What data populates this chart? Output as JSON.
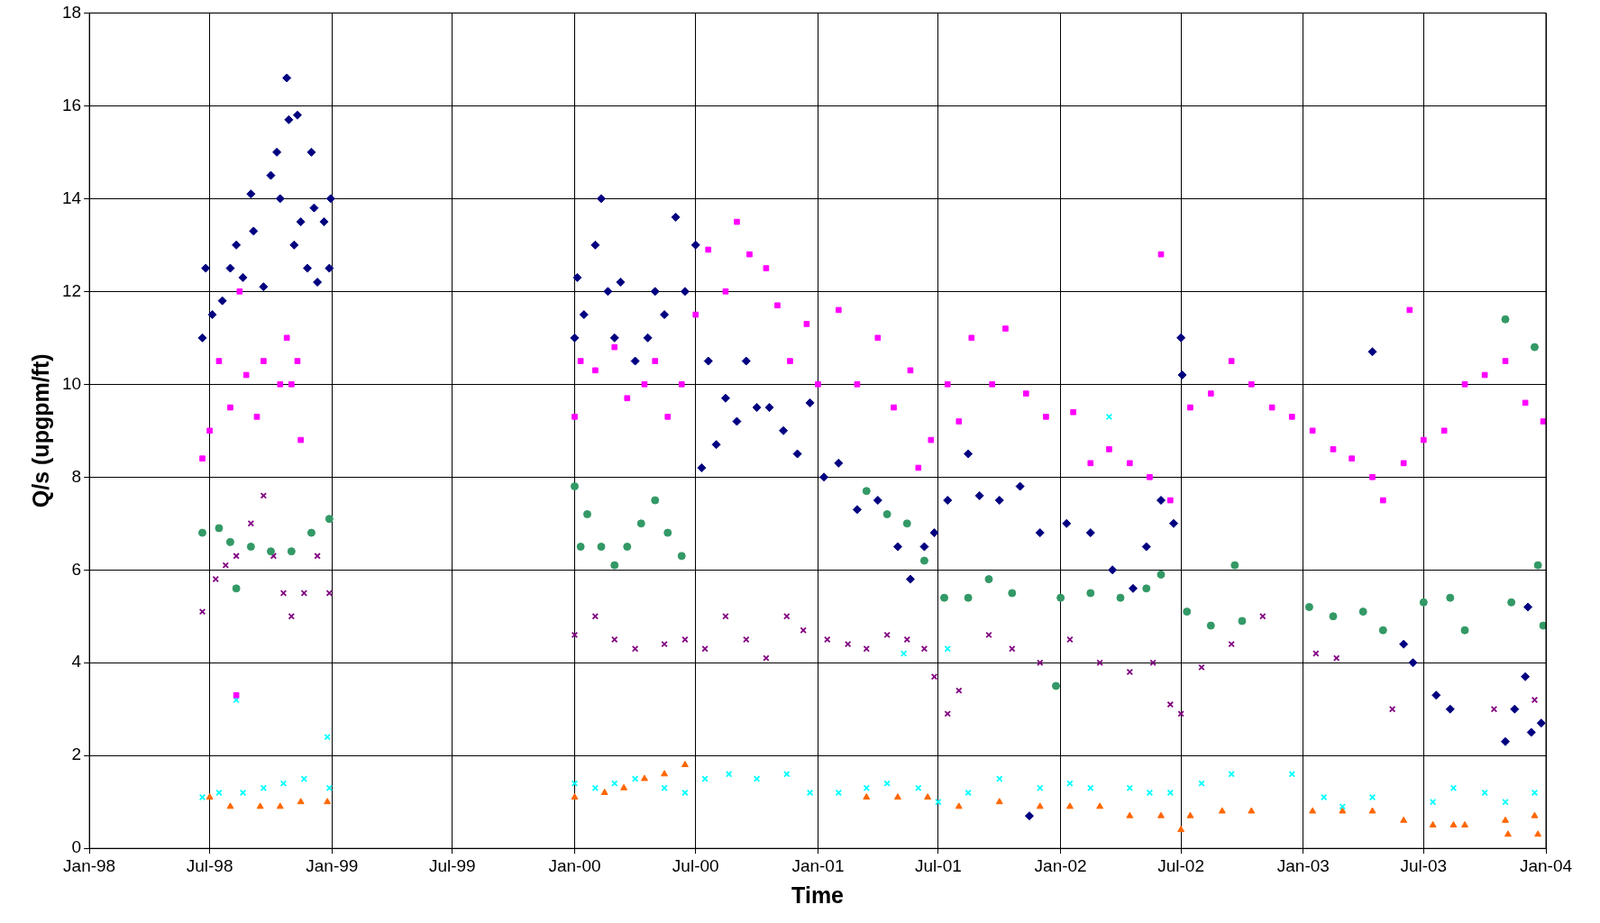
{
  "chart_data": {
    "type": "scatter",
    "xlabel": "Time",
    "ylabel": "Q/s (upgpm/ft)",
    "xlim": [
      "1998-01-01",
      "2004-01-01"
    ],
    "xticks": [
      {
        "value": "1998-01-01",
        "label": "Jan-98"
      },
      {
        "value": "1998-07-01",
        "label": "Jul-98"
      },
      {
        "value": "1999-01-01",
        "label": "Jan-99"
      },
      {
        "value": "1999-07-01",
        "label": "Jul-99"
      },
      {
        "value": "2000-01-01",
        "label": "Jan-00"
      },
      {
        "value": "2000-07-01",
        "label": "Jul-00"
      },
      {
        "value": "2001-01-01",
        "label": "Jan-01"
      },
      {
        "value": "2001-07-01",
        "label": "Jul-01"
      },
      {
        "value": "2002-01-01",
        "label": "Jan-02"
      },
      {
        "value": "2002-07-01",
        "label": "Jul-02"
      },
      {
        "value": "2003-01-01",
        "label": "Jan-03"
      },
      {
        "value": "2003-07-01",
        "label": "Jul-03"
      },
      {
        "value": "2004-01-01",
        "label": "Jan-04"
      }
    ],
    "ylim": [
      0,
      18
    ],
    "yticks": [
      0,
      2,
      4,
      6,
      8,
      10,
      12,
      14,
      16,
      18
    ],
    "grid": true,
    "legend": false,
    "series": [
      {
        "color": "#000080",
        "marker": "diamond",
        "x": [
          "1998-06-20",
          "1998-06-25",
          "1998-07-05",
          "1998-07-20",
          "1998-08-01",
          "1998-08-10",
          "1998-08-20",
          "1998-09-01",
          "1998-09-05",
          "1998-09-20",
          "1998-10-01",
          "1998-10-10",
          "1998-10-15",
          "1998-10-25",
          "1998-10-28",
          "1998-11-05",
          "1998-11-10",
          "1998-11-15",
          "1998-11-25",
          "1998-12-01",
          "1998-12-05",
          "1998-12-10",
          "1998-12-20",
          "1998-12-28",
          "1998-12-30",
          "2000-01-01",
          "2000-01-05",
          "2000-01-15",
          "2000-02-01",
          "2000-02-10",
          "2000-02-20",
          "2000-03-01",
          "2000-03-10",
          "2000-04-01",
          "2000-04-20",
          "2000-05-01",
          "2000-05-15",
          "2000-06-01",
          "2000-06-15",
          "2000-07-01",
          "2000-07-10",
          "2000-07-20",
          "2000-08-01",
          "2000-08-15",
          "2000-09-01",
          "2000-09-15",
          "2000-10-01",
          "2000-10-20",
          "2000-11-10",
          "2000-12-01",
          "2000-12-20",
          "2001-01-10",
          "2001-02-01",
          "2001-03-01",
          "2001-04-01",
          "2001-05-01",
          "2001-05-20",
          "2001-06-10",
          "2001-06-25",
          "2001-07-15",
          "2001-08-15",
          "2001-09-01",
          "2001-10-01",
          "2001-11-01",
          "2001-11-15",
          "2001-12-01",
          "2002-01-10",
          "2002-02-15",
          "2002-03-20",
          "2002-04-20",
          "2002-05-10",
          "2002-06-01",
          "2002-06-20",
          "2002-07-01",
          "2002-07-03",
          "2003-04-15",
          "2003-06-01",
          "2003-06-15",
          "2003-07-20",
          "2003-08-10",
          "2003-11-01",
          "2003-11-15",
          "2003-12-01",
          "2003-12-05",
          "2003-12-10",
          "2003-12-25"
        ],
        "values": [
          11.0,
          12.5,
          11.5,
          11.8,
          12.5,
          13.0,
          12.3,
          14.1,
          13.3,
          12.1,
          14.5,
          15.0,
          14.0,
          16.6,
          15.7,
          13.0,
          15.8,
          13.5,
          12.5,
          15.0,
          13.8,
          12.2,
          13.5,
          12.5,
          14.0,
          11.0,
          12.3,
          11.5,
          13.0,
          14.0,
          12.0,
          11.0,
          12.2,
          10.5,
          11.0,
          12.0,
          11.5,
          13.6,
          12.0,
          13.0,
          8.2,
          10.5,
          8.7,
          9.7,
          9.2,
          10.5,
          9.5,
          9.5,
          9.0,
          8.5,
          9.6,
          8.0,
          8.3,
          7.3,
          7.5,
          6.5,
          5.8,
          6.5,
          6.8,
          7.5,
          8.5,
          7.6,
          7.5,
          7.8,
          0.7,
          6.8,
          7.0,
          6.8,
          6.0,
          5.6,
          6.5,
          7.5,
          7.0,
          11.0,
          10.2,
          10.7,
          4.4,
          4.0,
          3.3,
          3.0,
          2.3,
          3.0,
          3.7,
          5.2,
          2.5,
          2.7
        ]
      },
      {
        "color": "#ff00ff",
        "marker": "square",
        "x": [
          "1998-06-20",
          "1998-07-01",
          "1998-07-15",
          "1998-08-01",
          "1998-08-10",
          "1998-08-15",
          "1998-08-25",
          "1998-09-10",
          "1998-09-20",
          "1998-10-15",
          "1998-10-25",
          "1998-11-01",
          "1998-11-10",
          "1998-11-15",
          "2000-01-01",
          "2000-01-10",
          "2000-02-01",
          "2000-03-01",
          "2000-03-20",
          "2000-04-15",
          "2000-05-01",
          "2000-05-20",
          "2000-06-10",
          "2000-07-01",
          "2000-07-20",
          "2000-08-15",
          "2000-09-01",
          "2000-09-20",
          "2000-10-15",
          "2000-11-01",
          "2000-11-20",
          "2000-12-15",
          "2001-01-01",
          "2001-02-01",
          "2001-03-01",
          "2001-04-01",
          "2001-04-25",
          "2001-05-20",
          "2001-06-01",
          "2001-06-20",
          "2001-07-15",
          "2001-08-01",
          "2001-08-20",
          "2001-09-20",
          "2001-10-10",
          "2001-11-10",
          "2001-12-10",
          "2002-01-20",
          "2002-02-15",
          "2002-03-15",
          "2002-04-15",
          "2002-05-15",
          "2002-06-01",
          "2002-06-15",
          "2002-07-15",
          "2002-08-15",
          "2002-09-15",
          "2002-10-15",
          "2002-11-15",
          "2002-12-15",
          "2003-01-15",
          "2003-02-15",
          "2003-03-15",
          "2003-04-15",
          "2003-05-01",
          "2003-06-01",
          "2003-06-10",
          "2003-07-01",
          "2003-08-01",
          "2003-09-01",
          "2003-10-01",
          "2003-11-01",
          "2003-12-01",
          "2003-12-28"
        ],
        "values": [
          8.4,
          9.0,
          10.5,
          9.5,
          3.3,
          12.0,
          10.2,
          9.3,
          10.5,
          10.0,
          11.0,
          10.0,
          10.5,
          8.8,
          9.3,
          10.5,
          10.3,
          10.8,
          9.7,
          10.0,
          10.5,
          9.3,
          10.0,
          11.5,
          12.9,
          12.0,
          13.5,
          12.8,
          12.5,
          11.7,
          10.5,
          11.3,
          10.0,
          11.6,
          10.0,
          11.0,
          9.5,
          10.3,
          8.2,
          8.8,
          10.0,
          9.2,
          11.0,
          10.0,
          11.2,
          9.8,
          9.3,
          9.4,
          8.3,
          8.6,
          8.3,
          8.0,
          12.8,
          7.5,
          9.5,
          9.8,
          10.5,
          10.0,
          9.5,
          9.3,
          9.0,
          8.6,
          8.4,
          8.0,
          7.5,
          8.3,
          11.6,
          8.8,
          9.0,
          10.0,
          10.2,
          10.5,
          9.6,
          9.2
        ]
      },
      {
        "color": "#339966",
        "marker": "circle",
        "x": [
          "1998-06-20",
          "1998-07-15",
          "1998-08-01",
          "1998-08-10",
          "1998-09-01",
          "1998-10-01",
          "1998-11-01",
          "1998-12-01",
          "1998-12-28",
          "2000-01-01",
          "2000-01-10",
          "2000-01-20",
          "2000-02-10",
          "2000-03-01",
          "2000-03-20",
          "2000-04-10",
          "2000-05-01",
          "2000-05-20",
          "2000-06-10",
          "2001-03-15",
          "2001-04-15",
          "2001-05-15",
          "2001-06-10",
          "2001-07-10",
          "2001-08-15",
          "2001-09-15",
          "2001-10-20",
          "2001-12-25",
          "2002-01-01",
          "2002-02-15",
          "2002-04-01",
          "2002-05-10",
          "2002-06-01",
          "2002-07-10",
          "2002-08-15",
          "2002-09-20",
          "2002-10-01",
          "2003-01-10",
          "2003-02-15",
          "2003-04-01",
          "2003-05-01",
          "2003-07-01",
          "2003-08-10",
          "2003-09-01",
          "2003-11-01",
          "2003-11-10",
          "2003-12-15",
          "2003-12-20",
          "2003-12-28"
        ],
        "values": [
          6.8,
          6.9,
          6.6,
          5.6,
          6.5,
          6.4,
          6.4,
          6.8,
          7.1,
          7.8,
          6.5,
          7.2,
          6.5,
          6.1,
          6.5,
          7.0,
          7.5,
          6.8,
          6.3,
          7.7,
          7.2,
          7.0,
          6.2,
          5.4,
          5.4,
          5.8,
          5.5,
          3.5,
          5.4,
          5.5,
          5.4,
          5.6,
          5.9,
          5.1,
          4.8,
          6.1,
          4.9,
          5.2,
          5.0,
          5.1,
          4.7,
          5.3,
          5.4,
          4.7,
          11.4,
          5.3,
          10.8,
          6.1,
          4.8
        ]
      },
      {
        "color": "#800080",
        "marker": "cross",
        "x": [
          "1998-06-20",
          "1998-07-10",
          "1998-07-25",
          "1998-08-10",
          "1998-09-01",
          "1998-09-20",
          "1998-10-05",
          "1998-10-20",
          "1998-11-01",
          "1998-11-20",
          "1998-12-10",
          "1998-12-28",
          "2000-01-01",
          "2000-02-01",
          "2000-03-01",
          "2000-04-01",
          "2000-05-15",
          "2000-06-15",
          "2000-07-15",
          "2000-08-15",
          "2000-09-15",
          "2000-10-15",
          "2000-11-15",
          "2000-12-10",
          "2001-01-15",
          "2001-02-15",
          "2001-03-15",
          "2001-04-15",
          "2001-05-15",
          "2001-06-10",
          "2001-06-25",
          "2001-07-15",
          "2001-08-01",
          "2001-09-15",
          "2001-10-20",
          "2001-12-01",
          "2002-01-15",
          "2002-03-01",
          "2002-04-15",
          "2002-05-20",
          "2002-06-15",
          "2002-07-01",
          "2002-08-01",
          "2002-09-15",
          "2002-11-01",
          "2003-01-20",
          "2003-02-20",
          "2003-05-15",
          "2003-10-15",
          "2003-12-15"
        ],
        "values": [
          5.1,
          5.8,
          6.1,
          6.3,
          7.0,
          7.6,
          6.3,
          5.5,
          5.0,
          5.5,
          6.3,
          5.5,
          4.6,
          5.0,
          4.5,
          4.3,
          4.4,
          4.5,
          4.3,
          5.0,
          4.5,
          4.1,
          5.0,
          4.7,
          4.5,
          4.4,
          4.3,
          4.6,
          4.5,
          4.3,
          3.7,
          2.9,
          3.4,
          4.6,
          4.3,
          4.0,
          4.5,
          4.0,
          3.8,
          4.0,
          3.1,
          2.9,
          3.9,
          4.4,
          5.0,
          4.2,
          4.1,
          3.0,
          3.0,
          3.2
        ]
      },
      {
        "color": "#00ffff",
        "marker": "cross",
        "x": [
          "1998-06-20",
          "1998-07-15",
          "1998-08-10",
          "1998-08-20",
          "1998-09-20",
          "1998-10-20",
          "1998-11-20",
          "1998-12-25",
          "1998-12-28",
          "2000-01-01",
          "2000-02-01",
          "2000-03-01",
          "2000-04-01",
          "2000-05-15",
          "2000-06-15",
          "2000-07-15",
          "2000-08-20",
          "2000-10-01",
          "2000-11-15",
          "2000-12-20",
          "2001-02-01",
          "2001-03-15",
          "2001-04-15",
          "2001-05-10",
          "2001-06-01",
          "2001-07-01",
          "2001-07-15",
          "2001-08-15",
          "2001-10-01",
          "2001-12-01",
          "2002-01-15",
          "2002-02-15",
          "2002-03-15",
          "2002-04-15",
          "2002-05-15",
          "2002-06-15",
          "2002-08-01",
          "2002-09-15",
          "2002-12-15",
          "2003-02-01",
          "2003-03-01",
          "2003-04-15",
          "2003-07-15",
          "2003-08-15",
          "2003-10-01",
          "2003-11-01",
          "2003-12-15"
        ],
        "values": [
          1.1,
          1.2,
          3.2,
          1.2,
          1.3,
          1.4,
          1.5,
          2.4,
          1.3,
          1.4,
          1.3,
          1.4,
          1.5,
          1.3,
          1.2,
          1.5,
          1.6,
          1.5,
          1.6,
          1.2,
          1.2,
          1.3,
          1.4,
          4.2,
          1.3,
          1.0,
          4.3,
          1.2,
          1.5,
          1.3,
          1.4,
          1.3,
          9.3,
          1.3,
          1.2,
          1.2,
          1.4,
          1.6,
          1.6,
          1.1,
          0.9,
          1.1,
          1.0,
          1.3,
          1.2,
          1.0,
          1.2
        ]
      },
      {
        "color": "#ff6600",
        "marker": "triangle",
        "x": [
          "1998-07-01",
          "1998-08-01",
          "1998-09-15",
          "1998-10-15",
          "1998-11-15",
          "1998-12-25",
          "2000-01-01",
          "2000-02-15",
          "2000-03-15",
          "2000-04-15",
          "2000-05-15",
          "2000-06-15",
          "2001-03-15",
          "2001-05-01",
          "2001-06-15",
          "2001-08-01",
          "2001-10-01",
          "2001-12-01",
          "2002-01-15",
          "2002-03-01",
          "2002-04-15",
          "2002-06-01",
          "2002-07-01",
          "2002-07-15",
          "2002-09-01",
          "2002-10-15",
          "2003-01-15",
          "2003-03-01",
          "2003-04-15",
          "2003-06-01",
          "2003-07-15",
          "2003-08-15",
          "2003-09-01",
          "2003-11-01",
          "2003-11-05",
          "2003-12-15",
          "2003-12-20"
        ],
        "values": [
          1.1,
          0.9,
          0.9,
          0.9,
          1.0,
          1.0,
          1.1,
          1.2,
          1.3,
          1.5,
          1.6,
          1.8,
          1.1,
          1.1,
          1.1,
          0.9,
          1.0,
          0.9,
          0.9,
          0.9,
          0.7,
          0.7,
          0.4,
          0.7,
          0.8,
          0.8,
          0.8,
          0.8,
          0.8,
          0.6,
          0.5,
          0.5,
          0.5,
          0.6,
          0.3,
          0.7,
          0.3
        ]
      }
    ]
  }
}
